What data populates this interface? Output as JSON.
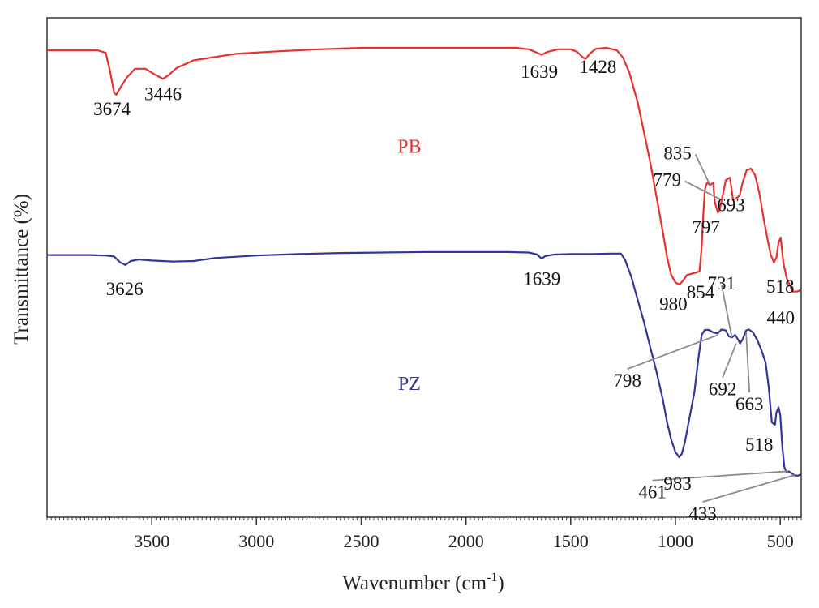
{
  "chart_data": {
    "type": "line",
    "title": "",
    "xlabel": "Wavenumber (cm",
    "xlabel_sup": "-1",
    "xlabel_close": ")",
    "ylabel": "Transmittance (%)",
    "xlim": [
      4000,
      400
    ],
    "x_reversed": true,
    "ylim": [
      0,
      100
    ],
    "grid": false,
    "x_ticks": [
      3500,
      3000,
      2500,
      2000,
      1500,
      1000,
      500
    ],
    "x_tick_labels": [
      "3500",
      "3000",
      "2500",
      "2000",
      "1500",
      "1000",
      "500"
    ],
    "series": [
      {
        "name": "PB",
        "color": "#e8302f",
        "points": [
          [
            4000,
            93.5
          ],
          [
            3860,
            93.5
          ],
          [
            3760,
            93.5
          ],
          [
            3720,
            93.0
          ],
          [
            3700,
            89.5
          ],
          [
            3680,
            85.0
          ],
          [
            3670,
            84.6
          ],
          [
            3650,
            86.0
          ],
          [
            3620,
            88.0
          ],
          [
            3580,
            89.8
          ],
          [
            3530,
            89.8
          ],
          [
            3480,
            88.5
          ],
          [
            3446,
            87.8
          ],
          [
            3420,
            88.5
          ],
          [
            3380,
            90.0
          ],
          [
            3300,
            91.5
          ],
          [
            3100,
            92.8
          ],
          [
            2900,
            93.3
          ],
          [
            2700,
            93.7
          ],
          [
            2500,
            94.0
          ],
          [
            2200,
            94.0
          ],
          [
            1900,
            94.0
          ],
          [
            1760,
            94.0
          ],
          [
            1700,
            93.7
          ],
          [
            1660,
            93.0
          ],
          [
            1639,
            92.6
          ],
          [
            1610,
            93.2
          ],
          [
            1560,
            93.7
          ],
          [
            1500,
            93.7
          ],
          [
            1470,
            93.2
          ],
          [
            1440,
            92.0
          ],
          [
            1428,
            91.8
          ],
          [
            1410,
            92.8
          ],
          [
            1380,
            93.8
          ],
          [
            1330,
            94.0
          ],
          [
            1280,
            93.5
          ],
          [
            1250,
            92.0
          ],
          [
            1220,
            89.0
          ],
          [
            1180,
            83.0
          ],
          [
            1150,
            77.0
          ],
          [
            1120,
            71.0
          ],
          [
            1090,
            64.0
          ],
          [
            1060,
            57.0
          ],
          [
            1040,
            52.0
          ],
          [
            1020,
            48.5
          ],
          [
            1000,
            47.0
          ],
          [
            980,
            46.6
          ],
          [
            965,
            47.3
          ],
          [
            945,
            48.5
          ],
          [
            920,
            48.8
          ],
          [
            900,
            49.0
          ],
          [
            885,
            49.3
          ],
          [
            875,
            54.0
          ],
          [
            868,
            60.0
          ],
          [
            860,
            65.5
          ],
          [
            854,
            66.5
          ],
          [
            848,
            67.0
          ],
          [
            835,
            66.5
          ],
          [
            820,
            67.0
          ],
          [
            812,
            63.0
          ],
          [
            797,
            61.0
          ],
          [
            790,
            61.5
          ],
          [
            779,
            63.5
          ],
          [
            760,
            67.5
          ],
          [
            740,
            68.0
          ],
          [
            725,
            63.5
          ],
          [
            705,
            64.0
          ],
          [
            693,
            64.5
          ],
          [
            680,
            67.0
          ],
          [
            660,
            69.5
          ],
          [
            640,
            69.8
          ],
          [
            620,
            68.5
          ],
          [
            600,
            65.0
          ],
          [
            580,
            60.0
          ],
          [
            560,
            55.5
          ],
          [
            545,
            52.5
          ],
          [
            530,
            51.0
          ],
          [
            518,
            52.0
          ],
          [
            508,
            55.0
          ],
          [
            498,
            56.0
          ],
          [
            485,
            51.0
          ],
          [
            470,
            48.0
          ],
          [
            455,
            46.5
          ],
          [
            440,
            45.2
          ],
          [
            420,
            45.2
          ],
          [
            400,
            45.5
          ]
        ]
      },
      {
        "name": "PZ",
        "color": "#33359a",
        "points": [
          [
            4000,
            52.5
          ],
          [
            3800,
            52.5
          ],
          [
            3720,
            52.4
          ],
          [
            3680,
            52.2
          ],
          [
            3650,
            51.0
          ],
          [
            3626,
            50.5
          ],
          [
            3600,
            51.3
          ],
          [
            3560,
            51.6
          ],
          [
            3500,
            51.4
          ],
          [
            3400,
            51.2
          ],
          [
            3300,
            51.3
          ],
          [
            3200,
            51.9
          ],
          [
            3000,
            52.4
          ],
          [
            2800,
            52.7
          ],
          [
            2600,
            52.9
          ],
          [
            2400,
            53.0
          ],
          [
            2200,
            53.1
          ],
          [
            2000,
            53.1
          ],
          [
            1800,
            53.1
          ],
          [
            1700,
            53.0
          ],
          [
            1660,
            52.6
          ],
          [
            1639,
            51.8
          ],
          [
            1620,
            52.3
          ],
          [
            1580,
            52.6
          ],
          [
            1500,
            52.7
          ],
          [
            1400,
            52.7
          ],
          [
            1300,
            52.8
          ],
          [
            1260,
            52.8
          ],
          [
            1240,
            51.5
          ],
          [
            1210,
            48.0
          ],
          [
            1180,
            43.5
          ],
          [
            1150,
            39.0
          ],
          [
            1120,
            34.0
          ],
          [
            1090,
            29.0
          ],
          [
            1060,
            23.5
          ],
          [
            1040,
            19.0
          ],
          [
            1020,
            15.5
          ],
          [
            1000,
            13.0
          ],
          [
            990,
            12.5
          ],
          [
            983,
            12.0
          ],
          [
            970,
            12.7
          ],
          [
            955,
            15.0
          ],
          [
            935,
            19.5
          ],
          [
            910,
            25.0
          ],
          [
            890,
            32.0
          ],
          [
            875,
            36.5
          ],
          [
            860,
            37.5
          ],
          [
            840,
            37.5
          ],
          [
            820,
            37.0
          ],
          [
            798,
            36.8
          ],
          [
            780,
            37.6
          ],
          [
            760,
            37.4
          ],
          [
            745,
            36.2
          ],
          [
            731,
            36.0
          ],
          [
            715,
            36.5
          ],
          [
            700,
            35.5
          ],
          [
            692,
            34.8
          ],
          [
            680,
            35.6
          ],
          [
            663,
            37.4
          ],
          [
            650,
            37.6
          ],
          [
            630,
            37.0
          ],
          [
            610,
            35.5
          ],
          [
            590,
            33.5
          ],
          [
            570,
            31.0
          ],
          [
            555,
            26.0
          ],
          [
            540,
            19.0
          ],
          [
            525,
            18.5
          ],
          [
            518,
            21.0
          ],
          [
            508,
            22.0
          ],
          [
            500,
            20.5
          ],
          [
            490,
            14.0
          ],
          [
            480,
            10.0
          ],
          [
            470,
            9.0
          ],
          [
            461,
            9.2
          ],
          [
            445,
            8.8
          ],
          [
            433,
            8.4
          ],
          [
            415,
            8.3
          ],
          [
            400,
            8.6
          ]
        ]
      }
    ],
    "series_labels": [
      {
        "text": "PB",
        "x": 2270,
        "y": 73.0,
        "color": "#e8302f"
      },
      {
        "text": "PZ",
        "x": 2270,
        "y": 25.5,
        "color": "#33359a"
      }
    ],
    "annotations": [
      {
        "text": "3674",
        "x": 3690,
        "y": 80.5
      },
      {
        "text": "3446",
        "x": 3446,
        "y": 83.5
      },
      {
        "text": "1639",
        "x": 1650,
        "y": 88.0
      },
      {
        "text": "1428",
        "x": 1370,
        "y": 89.0
      },
      {
        "text": "835",
        "x": 990,
        "y": 71.7,
        "pointer": [
          835,
          66.5
        ]
      },
      {
        "text": "779",
        "x": 1040,
        "y": 66.3,
        "pointer": [
          779,
          63.5
        ]
      },
      {
        "text": "693",
        "x": 735,
        "y": 61.3
      },
      {
        "text": "797",
        "x": 855,
        "y": 56.8
      },
      {
        "text": "980",
        "x": 1010,
        "y": 41.5
      },
      {
        "text": "854",
        "x": 880,
        "y": 43.8
      },
      {
        "text": "518",
        "x": 500,
        "y": 45.0
      },
      {
        "text": "440",
        "x": 498,
        "y": 38.7
      },
      {
        "text": "3626",
        "x": 3630,
        "y": 44.5
      },
      {
        "text": "1639",
        "x": 1638,
        "y": 46.5
      },
      {
        "text": "731",
        "x": 780,
        "y": 45.6,
        "pointer": [
          731,
          36.0
        ]
      },
      {
        "text": "798",
        "x": 1230,
        "y": 26.1,
        "pointer": [
          798,
          36.5
        ]
      },
      {
        "text": "692",
        "x": 775,
        "y": 24.4,
        "pointer": [
          710,
          34.8
        ]
      },
      {
        "text": "663",
        "x": 647,
        "y": 21.4,
        "pointer": [
          663,
          37.0
        ]
      },
      {
        "text": "983",
        "x": 990,
        "y": 5.5
      },
      {
        "text": "518",
        "x": 600,
        "y": 13.3
      },
      {
        "text": "461",
        "x": 1110,
        "y": 3.8,
        "pointer": [
          461,
          9.2
        ]
      },
      {
        "text": "433",
        "x": 870,
        "y": -0.5,
        "pointer": [
          433,
          8.4
        ]
      }
    ]
  }
}
